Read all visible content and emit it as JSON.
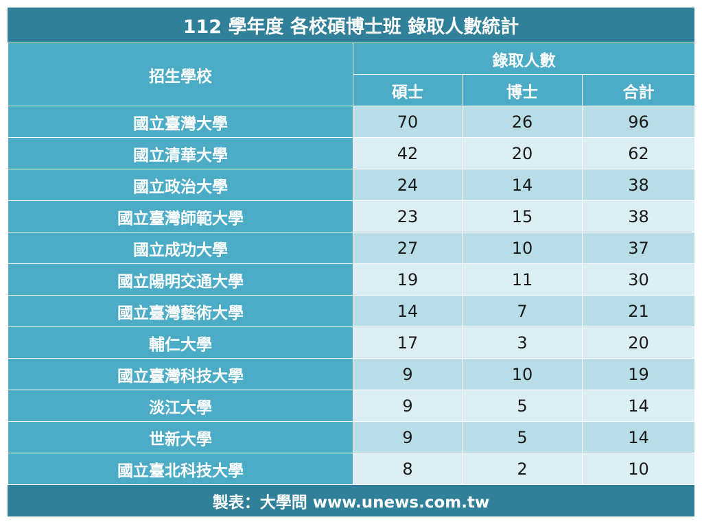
{
  "title": "112 學年度  各校碩博士班 錄取人數統計",
  "header": {
    "school_col": "招生學校",
    "admitted_group": "錄取人數",
    "master": "碩士",
    "doctor": "博士",
    "total": "合計"
  },
  "rows": [
    {
      "school": "國立臺灣大學",
      "master": "70",
      "doctor": "26",
      "total": "96"
    },
    {
      "school": "國立清華大學",
      "master": "42",
      "doctor": "20",
      "total": "62"
    },
    {
      "school": "國立政治大學",
      "master": "24",
      "doctor": "14",
      "total": "38"
    },
    {
      "school": "國立臺灣師範大學",
      "master": "23",
      "doctor": "15",
      "total": "38"
    },
    {
      "school": "國立成功大學",
      "master": "27",
      "doctor": "10",
      "total": "37"
    },
    {
      "school": "國立陽明交通大學",
      "master": "19",
      "doctor": "11",
      "total": "30"
    },
    {
      "school": "國立臺灣藝術大學",
      "master": "14",
      "doctor": "7",
      "total": "21"
    },
    {
      "school": "輔仁大學",
      "master": "17",
      "doctor": "3",
      "total": "20"
    },
    {
      "school": "國立臺灣科技大學",
      "master": "9",
      "doctor": "10",
      "total": "19"
    },
    {
      "school": "淡江大學",
      "master": "9",
      "doctor": "5",
      "total": "14"
    },
    {
      "school": "世新大學",
      "master": "9",
      "doctor": "5",
      "total": "14"
    },
    {
      "school": "國立臺北科技大學",
      "master": "8",
      "doctor": "2",
      "total": "10"
    }
  ],
  "footer": "製表：大學問 www.unews.com.tw",
  "colors": {
    "title_bg": "#2f8098",
    "header_bg": "#4cacc6",
    "row_odd_bg": "#b8dde6",
    "row_even_bg": "#dbeef3"
  }
}
